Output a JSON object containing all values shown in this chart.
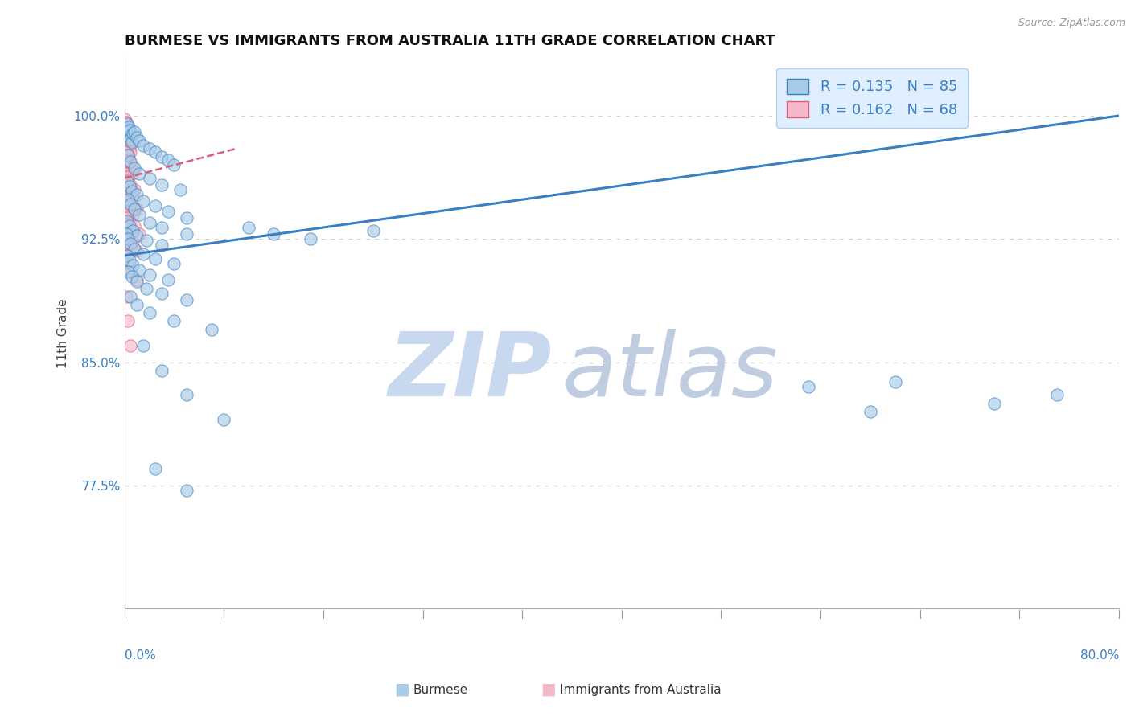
{
  "title": "BURMESE VS IMMIGRANTS FROM AUSTRALIA 11TH GRADE CORRELATION CHART",
  "source": "Source: ZipAtlas.com",
  "ylabel": "11th Grade",
  "yticks": [
    77.5,
    85.0,
    92.5,
    100.0
  ],
  "ytick_labels": [
    "77.5%",
    "85.0%",
    "92.5%",
    "100.0%"
  ],
  "xmin": 0.0,
  "xmax": 80.0,
  "ymin": 70.0,
  "ymax": 103.5,
  "R_blue": 0.135,
  "N_blue": 85,
  "R_pink": 0.162,
  "N_pink": 68,
  "blue_color": "#a8cce8",
  "pink_color": "#f5b8c8",
  "trend_blue": "#3a7fc1",
  "trend_pink": "#d8607a",
  "legend_box_color": "#ddeeff",
  "watermark_zip_color": "#c8d8ee",
  "watermark_atlas_color": "#c0cce0",
  "blue_trend_x": [
    0,
    80
  ],
  "blue_trend_y": [
    91.5,
    100.0
  ],
  "pink_trend_x": [
    0,
    9
  ],
  "pink_trend_y": [
    96.2,
    98.0
  ],
  "blue_scatter": [
    [
      0.15,
      99.2
    ],
    [
      0.2,
      99.5
    ],
    [
      0.25,
      99.0
    ],
    [
      0.3,
      98.8
    ],
    [
      0.35,
      99.3
    ],
    [
      0.4,
      99.1
    ],
    [
      0.5,
      98.6
    ],
    [
      0.6,
      98.4
    ],
    [
      0.7,
      98.9
    ],
    [
      0.8,
      99.0
    ],
    [
      1.0,
      98.7
    ],
    [
      1.2,
      98.5
    ],
    [
      1.5,
      98.2
    ],
    [
      2.0,
      98.0
    ],
    [
      2.5,
      97.8
    ],
    [
      3.0,
      97.5
    ],
    [
      3.5,
      97.3
    ],
    [
      4.0,
      97.0
    ],
    [
      0.3,
      97.6
    ],
    [
      0.5,
      97.2
    ],
    [
      0.8,
      96.8
    ],
    [
      1.2,
      96.5
    ],
    [
      2.0,
      96.2
    ],
    [
      3.0,
      95.8
    ],
    [
      4.5,
      95.5
    ],
    [
      0.2,
      96.0
    ],
    [
      0.4,
      95.7
    ],
    [
      0.6,
      95.4
    ],
    [
      1.0,
      95.2
    ],
    [
      1.5,
      94.8
    ],
    [
      2.5,
      94.5
    ],
    [
      3.5,
      94.2
    ],
    [
      5.0,
      93.8
    ],
    [
      0.3,
      94.9
    ],
    [
      0.5,
      94.6
    ],
    [
      0.8,
      94.3
    ],
    [
      1.2,
      94.0
    ],
    [
      2.0,
      93.5
    ],
    [
      3.0,
      93.2
    ],
    [
      5.0,
      92.8
    ],
    [
      0.2,
      93.6
    ],
    [
      0.4,
      93.3
    ],
    [
      0.7,
      93.0
    ],
    [
      1.0,
      92.7
    ],
    [
      1.8,
      92.4
    ],
    [
      3.0,
      92.1
    ],
    [
      0.15,
      92.8
    ],
    [
      0.3,
      92.5
    ],
    [
      0.5,
      92.2
    ],
    [
      0.8,
      91.9
    ],
    [
      1.5,
      91.6
    ],
    [
      2.5,
      91.3
    ],
    [
      4.0,
      91.0
    ],
    [
      0.2,
      91.5
    ],
    [
      0.4,
      91.2
    ],
    [
      0.7,
      90.9
    ],
    [
      1.2,
      90.6
    ],
    [
      2.0,
      90.3
    ],
    [
      3.5,
      90.0
    ],
    [
      0.3,
      90.5
    ],
    [
      0.6,
      90.2
    ],
    [
      1.0,
      89.9
    ],
    [
      1.8,
      89.5
    ],
    [
      3.0,
      89.2
    ],
    [
      5.0,
      88.8
    ],
    [
      0.5,
      89.0
    ],
    [
      1.0,
      88.5
    ],
    [
      2.0,
      88.0
    ],
    [
      4.0,
      87.5
    ],
    [
      7.0,
      87.0
    ],
    [
      10.0,
      93.2
    ],
    [
      12.0,
      92.8
    ],
    [
      15.0,
      92.5
    ],
    [
      20.0,
      93.0
    ],
    [
      1.5,
      86.0
    ],
    [
      3.0,
      84.5
    ],
    [
      5.0,
      83.0
    ],
    [
      8.0,
      81.5
    ],
    [
      2.5,
      78.5
    ],
    [
      5.0,
      77.2
    ],
    [
      55.0,
      83.5
    ],
    [
      60.0,
      82.0
    ],
    [
      70.0,
      82.5
    ],
    [
      75.0,
      83.0
    ],
    [
      62.0,
      83.8
    ]
  ],
  "pink_scatter": [
    [
      0.05,
      99.8
    ],
    [
      0.08,
      99.5
    ],
    [
      0.1,
      99.3
    ],
    [
      0.12,
      99.6
    ],
    [
      0.15,
      99.1
    ],
    [
      0.18,
      98.8
    ],
    [
      0.2,
      99.2
    ],
    [
      0.22,
      98.5
    ],
    [
      0.25,
      99.0
    ],
    [
      0.28,
      98.3
    ],
    [
      0.3,
      98.7
    ],
    [
      0.35,
      98.9
    ],
    [
      0.4,
      98.0
    ],
    [
      0.45,
      98.4
    ],
    [
      0.5,
      97.8
    ],
    [
      0.12,
      97.5
    ],
    [
      0.15,
      97.8
    ],
    [
      0.2,
      97.2
    ],
    [
      0.25,
      97.6
    ],
    [
      0.3,
      97.0
    ],
    [
      0.35,
      97.3
    ],
    [
      0.4,
      96.8
    ],
    [
      0.5,
      97.1
    ],
    [
      0.6,
      96.5
    ],
    [
      0.7,
      96.8
    ],
    [
      0.08,
      96.2
    ],
    [
      0.12,
      96.5
    ],
    [
      0.15,
      96.0
    ],
    [
      0.2,
      96.3
    ],
    [
      0.25,
      95.8
    ],
    [
      0.3,
      96.1
    ],
    [
      0.4,
      95.5
    ],
    [
      0.5,
      95.8
    ],
    [
      0.6,
      95.2
    ],
    [
      0.8,
      95.5
    ],
    [
      0.05,
      95.0
    ],
    [
      0.1,
      95.3
    ],
    [
      0.15,
      94.8
    ],
    [
      0.2,
      95.1
    ],
    [
      0.25,
      94.5
    ],
    [
      0.3,
      94.8
    ],
    [
      0.4,
      94.2
    ],
    [
      0.5,
      94.5
    ],
    [
      0.7,
      94.0
    ],
    [
      1.0,
      94.3
    ],
    [
      0.08,
      93.8
    ],
    [
      0.12,
      94.1
    ],
    [
      0.15,
      93.5
    ],
    [
      0.2,
      93.8
    ],
    [
      0.3,
      93.2
    ],
    [
      0.4,
      93.5
    ],
    [
      0.6,
      93.0
    ],
    [
      0.8,
      93.3
    ],
    [
      1.2,
      92.8
    ],
    [
      0.1,
      92.5
    ],
    [
      0.15,
      92.8
    ],
    [
      0.2,
      92.2
    ],
    [
      0.3,
      92.5
    ],
    [
      0.5,
      92.0
    ],
    [
      0.7,
      92.3
    ],
    [
      1.0,
      91.8
    ],
    [
      0.2,
      91.5
    ],
    [
      0.3,
      91.0
    ],
    [
      0.5,
      90.5
    ],
    [
      1.0,
      90.0
    ],
    [
      0.15,
      89.0
    ],
    [
      0.3,
      87.5
    ],
    [
      0.5,
      86.0
    ]
  ]
}
